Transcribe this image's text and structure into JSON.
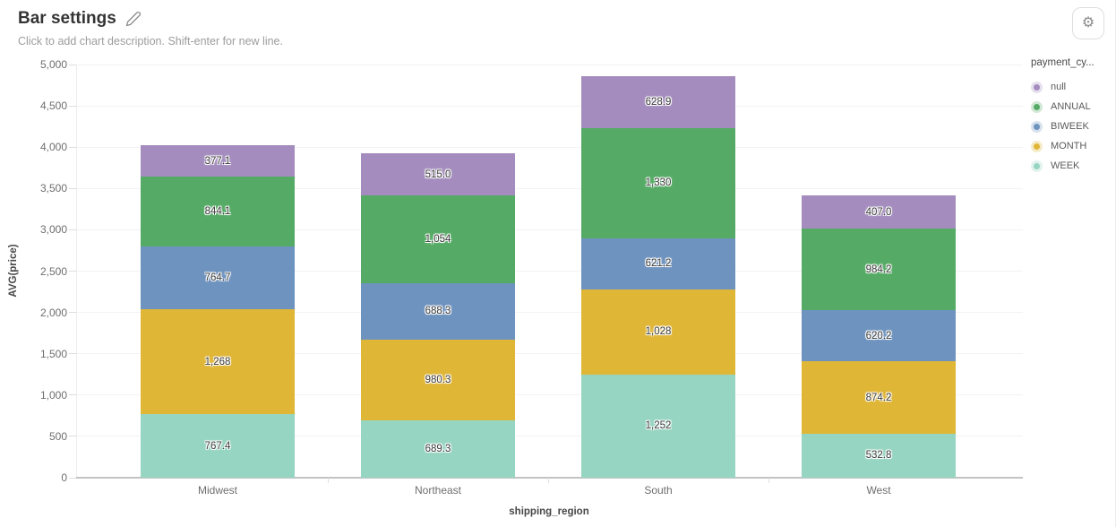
{
  "header": {
    "title": "Bar settings",
    "subtitle": "Click to add chart description. Shift-enter for new line.",
    "edit_icon": "pencil-icon",
    "settings_icon": "gear-icon",
    "settings_glyph": "⚙"
  },
  "chart_data": {
    "type": "bar",
    "stacked": true,
    "xlabel": "shipping_region",
    "ylabel": "AVG(price)",
    "ylim": [
      0,
      5000
    ],
    "ytick_step": 500,
    "grid": true,
    "categories": [
      "Midwest",
      "Northeast",
      "South",
      "West"
    ],
    "series": [
      {
        "name": "WEEK",
        "color": "#96d5c1",
        "values": [
          767.4,
          689.3,
          1252,
          532.8
        ],
        "labels": [
          "767.4",
          "689.3",
          "1,252",
          "532.8"
        ]
      },
      {
        "name": "MONTH",
        "color": "#e0b637",
        "values": [
          1268,
          980.3,
          1028,
          874.2
        ],
        "labels": [
          "1,268",
          "980.3",
          "1,028",
          "874.2"
        ]
      },
      {
        "name": "BIWEEK",
        "color": "#6e93bf",
        "values": [
          764.7,
          688.3,
          621.2,
          620.2
        ],
        "labels": [
          "764.7",
          "688.3",
          "621.2",
          "620.2"
        ]
      },
      {
        "name": "ANNUAL",
        "color": "#55ab65",
        "values": [
          844.1,
          1054,
          1330,
          984.2
        ],
        "labels": [
          "844.1",
          "1,054",
          "1,330",
          "984.2"
        ]
      },
      {
        "name": "null",
        "color": "#a48dbe",
        "values": [
          377.1,
          515.0,
          628.9,
          407.0
        ],
        "labels": [
          "377.1",
          "515.0",
          "628.9",
          "407.0"
        ]
      }
    ],
    "legend": {
      "title": "payment_cy...",
      "position": "right",
      "items_top_to_bottom": [
        "null",
        "ANNUAL",
        "BIWEEK",
        "MONTH",
        "WEEK"
      ]
    }
  }
}
